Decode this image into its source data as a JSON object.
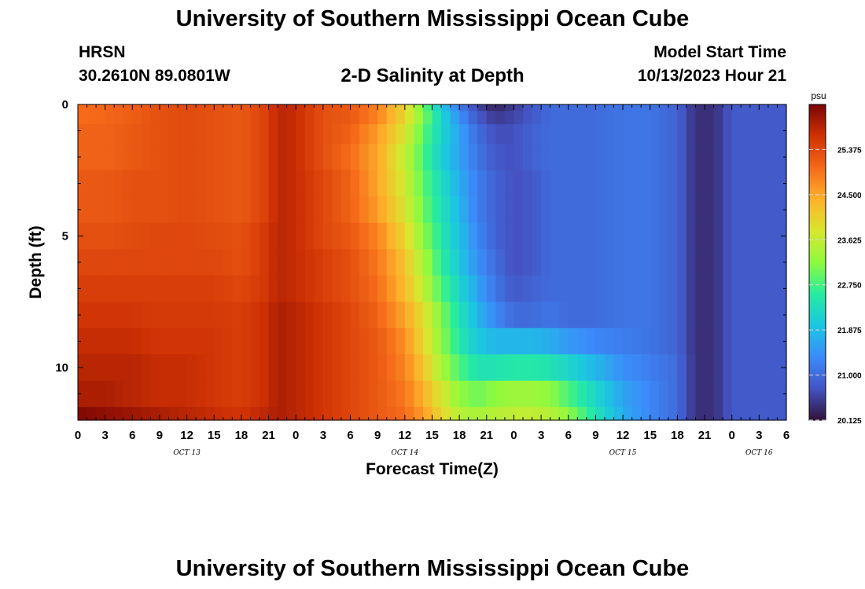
{
  "header": {
    "title": "University of Southern Mississippi Ocean Cube",
    "station": "HRSN",
    "coordinates": "30.2610N  89.0801W",
    "subtitle": "2-D Salinity at Depth",
    "model_start_label": "Model Start Time",
    "model_start_value": "10/13/2023 Hour 21"
  },
  "footer": {
    "title": "University of Southern Mississippi Ocean Cube"
  },
  "chart_data": {
    "type": "heatmap",
    "title": "2-D Salinity at Depth",
    "xlabel": "Forecast Time(Z)",
    "ylabel": "Depth (ft)",
    "x_start_hour": 0,
    "x_end_hour": 78,
    "x_hours_per_column": 1,
    "ylim": [
      0,
      12
    ],
    "y_inverted": true,
    "y_tick_labels": [
      0,
      5,
      10
    ],
    "x_tick_labels": [
      "0",
      "3",
      "6",
      "9",
      "12",
      "15",
      "18",
      "21",
      "0",
      "3",
      "6",
      "9",
      "12",
      "15",
      "18",
      "21",
      "0",
      "3",
      "6",
      "9",
      "12",
      "15",
      "18",
      "21",
      "0",
      "3",
      "6"
    ],
    "date_labels": [
      {
        "label": "OCT 13",
        "hour": 12
      },
      {
        "label": "OCT 14",
        "hour": 36
      },
      {
        "label": "OCT 15",
        "hour": 60
      },
      {
        "label": "OCT 16",
        "hour": 75
      }
    ],
    "colorbar": {
      "unit": "psu",
      "min": 20.125,
      "max": 26.25,
      "tick_labels": [
        "25.375",
        "24.500",
        "23.625",
        "22.750",
        "21.875",
        "21.000",
        "20.125"
      ],
      "colormap": "turbo"
    },
    "depth_rows": [
      0,
      0.5,
      1,
      2,
      3,
      4,
      5,
      6,
      7,
      8,
      9,
      10,
      11,
      12
    ],
    "keyframes_hours": [
      0,
      3,
      6,
      9,
      12,
      15,
      18,
      21,
      22,
      24,
      27,
      30,
      33,
      36,
      38,
      40,
      42,
      44,
      46,
      48,
      50,
      52,
      54,
      57,
      60,
      63,
      66,
      68,
      70,
      72,
      75,
      78
    ],
    "keyframes_psu": [
      [
        25.0,
        25.05,
        25.15,
        25.3,
        25.35,
        25.3,
        25.2,
        25.5,
        25.8,
        25.7,
        25.3,
        25.2,
        24.8,
        24.0,
        23.0,
        22.0,
        21.2,
        20.6,
        20.3,
        20.5,
        20.8,
        21.0,
        21.0,
        21.0,
        21.1,
        21.1,
        20.9,
        20.4,
        20.4,
        20.8,
        20.8,
        20.8
      ],
      [
        25.0,
        25.05,
        25.15,
        25.3,
        25.35,
        25.3,
        25.2,
        25.5,
        25.8,
        25.7,
        25.3,
        25.2,
        24.8,
        24.0,
        23.1,
        22.2,
        21.4,
        20.8,
        20.5,
        20.6,
        20.8,
        21.0,
        21.0,
        21.0,
        21.1,
        21.1,
        20.9,
        20.4,
        20.4,
        20.8,
        20.8,
        20.8
      ],
      [
        25.1,
        25.1,
        25.2,
        25.3,
        25.35,
        25.3,
        25.2,
        25.5,
        25.8,
        25.7,
        25.3,
        25.1,
        24.6,
        23.8,
        22.9,
        22.2,
        21.6,
        21.0,
        20.7,
        20.7,
        20.9,
        21.0,
        21.0,
        21.0,
        21.1,
        21.1,
        20.9,
        20.4,
        20.4,
        20.8,
        20.8,
        20.8
      ],
      [
        25.1,
        25.1,
        25.2,
        25.3,
        25.35,
        25.3,
        25.2,
        25.5,
        25.8,
        25.7,
        25.3,
        25.0,
        24.5,
        23.6,
        22.8,
        22.1,
        21.6,
        21.1,
        20.8,
        20.7,
        20.9,
        21.0,
        21.0,
        21.0,
        21.1,
        21.1,
        20.9,
        20.4,
        20.4,
        20.8,
        20.8,
        20.8
      ],
      [
        25.2,
        25.2,
        25.3,
        25.3,
        25.35,
        25.3,
        25.2,
        25.5,
        25.8,
        25.7,
        25.4,
        25.1,
        24.5,
        23.7,
        22.9,
        22.3,
        21.7,
        21.2,
        20.9,
        20.7,
        20.8,
        21.0,
        21.0,
        21.0,
        21.1,
        21.1,
        20.9,
        20.4,
        20.4,
        20.8,
        20.8,
        20.8
      ],
      [
        25.2,
        25.2,
        25.3,
        25.3,
        25.35,
        25.3,
        25.2,
        25.5,
        25.8,
        25.7,
        25.4,
        25.1,
        24.6,
        23.8,
        23.0,
        22.4,
        21.8,
        21.2,
        20.9,
        20.7,
        20.8,
        21.0,
        21.0,
        21.0,
        21.1,
        21.1,
        20.9,
        20.4,
        20.4,
        20.8,
        20.8,
        20.8
      ],
      [
        25.3,
        25.3,
        25.35,
        25.4,
        25.4,
        25.35,
        25.3,
        25.6,
        25.8,
        25.7,
        25.4,
        25.2,
        24.8,
        24.0,
        23.2,
        22.5,
        21.9,
        21.3,
        20.9,
        20.7,
        20.8,
        21.0,
        21.0,
        21.0,
        21.1,
        21.1,
        20.9,
        20.4,
        20.4,
        20.8,
        20.8,
        20.8
      ],
      [
        25.4,
        25.4,
        25.4,
        25.4,
        25.4,
        25.4,
        25.3,
        25.6,
        25.8,
        25.7,
        25.5,
        25.3,
        24.9,
        24.2,
        23.4,
        22.6,
        22.0,
        21.4,
        21.0,
        20.7,
        20.8,
        21.0,
        21.0,
        21.0,
        21.1,
        21.1,
        20.9,
        20.4,
        20.4,
        20.8,
        20.8,
        20.8
      ],
      [
        25.5,
        25.5,
        25.5,
        25.5,
        25.5,
        25.5,
        25.4,
        25.6,
        25.8,
        25.7,
        25.5,
        25.3,
        25.0,
        24.3,
        23.6,
        22.8,
        22.2,
        21.6,
        21.1,
        20.8,
        20.9,
        21.0,
        21.0,
        21.0,
        21.1,
        21.1,
        20.9,
        20.4,
        20.4,
        20.8,
        20.8,
        20.8
      ],
      [
        25.6,
        25.6,
        25.6,
        25.55,
        25.55,
        25.55,
        25.5,
        25.7,
        25.9,
        25.8,
        25.6,
        25.4,
        25.1,
        24.5,
        23.9,
        23.1,
        22.4,
        21.8,
        21.3,
        21.0,
        21.0,
        21.1,
        21.0,
        21.0,
        21.1,
        21.1,
        20.9,
        20.4,
        20.4,
        20.8,
        20.8,
        20.8
      ],
      [
        25.7,
        25.7,
        25.7,
        25.6,
        25.6,
        25.6,
        25.5,
        25.7,
        25.9,
        25.8,
        25.6,
        25.4,
        25.2,
        24.7,
        24.0,
        23.2,
        22.5,
        22.0,
        21.8,
        21.8,
        21.8,
        21.7,
        21.5,
        21.3,
        21.2,
        21.1,
        20.9,
        20.4,
        20.4,
        20.8,
        20.8,
        20.8
      ],
      [
        25.8,
        25.8,
        25.8,
        25.7,
        25.7,
        25.6,
        25.5,
        25.7,
        25.9,
        25.8,
        25.6,
        25.4,
        25.2,
        24.8,
        24.2,
        23.4,
        22.8,
        22.4,
        22.4,
        22.5,
        22.5,
        22.4,
        22.2,
        21.8,
        21.4,
        21.2,
        21.0,
        20.4,
        20.4,
        20.8,
        20.8,
        20.8
      ],
      [
        25.9,
        25.9,
        25.8,
        25.7,
        25.7,
        25.6,
        25.5,
        25.7,
        25.9,
        25.8,
        25.6,
        25.4,
        25.2,
        24.9,
        24.4,
        23.8,
        23.2,
        23.0,
        23.2,
        23.3,
        23.3,
        23.2,
        22.8,
        22.2,
        21.6,
        21.3,
        21.0,
        20.4,
        20.4,
        20.8,
        20.8,
        20.8
      ],
      [
        26.2,
        26.1,
        26.0,
        25.9,
        25.8,
        25.7,
        25.6,
        25.8,
        25.9,
        25.8,
        25.6,
        25.4,
        25.2,
        25.0,
        24.6,
        24.0,
        23.5,
        23.4,
        23.5,
        23.6,
        23.6,
        23.5,
        23.2,
        22.4,
        21.7,
        21.3,
        21.0,
        20.4,
        20.4,
        20.8,
        20.8,
        20.8
      ]
    ]
  }
}
